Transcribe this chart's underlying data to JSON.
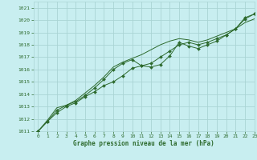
{
  "title": "Graphe pression niveau de la mer (hPa)",
  "background_color": "#c8eef0",
  "grid_color": "#aad4d4",
  "line_color": "#2d6a2d",
  "marker_color": "#2d6a2d",
  "xlim": [
    -0.5,
    23
  ],
  "ylim": [
    1011,
    1021.5
  ],
  "xticks": [
    0,
    1,
    2,
    3,
    4,
    5,
    6,
    7,
    8,
    9,
    10,
    11,
    12,
    13,
    14,
    15,
    16,
    17,
    18,
    19,
    20,
    21,
    22,
    23
  ],
  "yticks": [
    1011,
    1012,
    1013,
    1014,
    1015,
    1016,
    1017,
    1018,
    1019,
    1020,
    1021
  ],
  "series1_x": [
    0,
    1,
    2,
    3,
    4,
    5,
    6,
    7,
    8,
    9,
    10,
    11,
    12,
    13,
    14,
    15,
    16,
    17,
    18,
    19,
    20,
    21,
    22,
    23
  ],
  "series1_y": [
    1011.0,
    1011.8,
    1012.5,
    1013.0,
    1013.3,
    1013.8,
    1014.2,
    1014.7,
    1015.0,
    1015.5,
    1016.1,
    1016.3,
    1016.5,
    1017.0,
    1017.5,
    1018.0,
    1018.2,
    1018.0,
    1018.2,
    1018.5,
    1018.8,
    1019.3,
    1020.1,
    1020.5
  ],
  "series2_x": [
    0,
    1,
    2,
    3,
    4,
    5,
    6,
    7,
    8,
    9,
    10,
    11,
    12,
    13,
    14,
    15,
    16,
    17,
    18,
    19,
    20,
    21,
    22,
    23
  ],
  "series2_y": [
    1011.0,
    1011.8,
    1012.7,
    1013.1,
    1013.4,
    1013.9,
    1014.5,
    1015.2,
    1016.0,
    1016.5,
    1016.8,
    1016.3,
    1016.2,
    1016.4,
    1017.1,
    1018.2,
    1017.9,
    1017.7,
    1018.0,
    1018.3,
    1018.8,
    1019.3,
    1020.2,
    1020.5
  ],
  "series3_x": [
    0,
    1,
    2,
    3,
    4,
    5,
    6,
    7,
    8,
    9,
    10,
    11,
    12,
    13,
    14,
    15,
    16,
    17,
    18,
    19,
    20,
    21,
    22,
    23
  ],
  "series3_y": [
    1011.0,
    1011.9,
    1012.9,
    1013.1,
    1013.5,
    1014.1,
    1014.7,
    1015.4,
    1016.2,
    1016.6,
    1016.9,
    1017.2,
    1017.6,
    1018.0,
    1018.3,
    1018.5,
    1018.4,
    1018.2,
    1018.4,
    1018.7,
    1019.0,
    1019.3,
    1019.8,
    1020.1
  ]
}
